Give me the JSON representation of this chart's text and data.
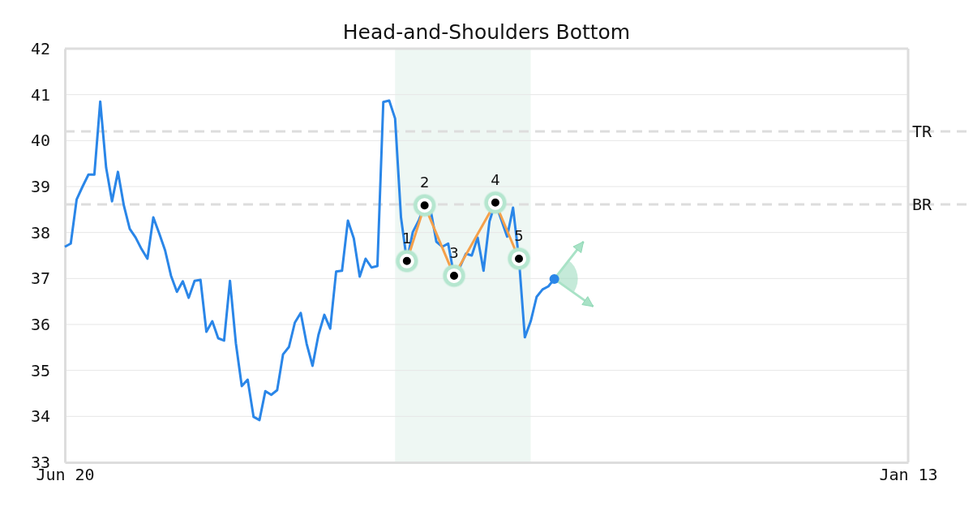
{
  "chart_data": {
    "type": "line",
    "title": "Head-and-Shoulders Bottom",
    "categories": [
      "Jun 20",
      null,
      null,
      null,
      null,
      null,
      null,
      null,
      null,
      null,
      null,
      null,
      null,
      null,
      null,
      null,
      null,
      null,
      null,
      null,
      null,
      null,
      null,
      null,
      null,
      null,
      null,
      null,
      null,
      null,
      null,
      null,
      null,
      null,
      null,
      null,
      null,
      null,
      null,
      null,
      null,
      null,
      null,
      null,
      null,
      null,
      null,
      null,
      null,
      null,
      null,
      null,
      null,
      null,
      null,
      null,
      null,
      null,
      null,
      null,
      null,
      null,
      null,
      null,
      null,
      null,
      null,
      null,
      null,
      null,
      null,
      null,
      null,
      null,
      null,
      null,
      null,
      null,
      null,
      null,
      null,
      null,
      null,
      null,
      null,
      null,
      null,
      null,
      null,
      null,
      null,
      null,
      null,
      null,
      null,
      null,
      null,
      null,
      null,
      null,
      null,
      null,
      null,
      null,
      null,
      null,
      null,
      null,
      null,
      null,
      null,
      null,
      null,
      null,
      null,
      null,
      null,
      null,
      null,
      null,
      null,
      null,
      null,
      null,
      null,
      null,
      null,
      null,
      null,
      null,
      null,
      null,
      null,
      null,
      null,
      null,
      null,
      null,
      null,
      null,
      null,
      null,
      null,
      "Jan 13"
    ],
    "ylim": [
      33,
      42
    ],
    "yticks": [
      33,
      34,
      35,
      36,
      37,
      38,
      39,
      40,
      41,
      42
    ],
    "grid": "y",
    "series": [
      {
        "color": "#2a86e8",
        "marker": "none",
        "values": [
          37.69,
          37.76,
          38.72,
          39.0,
          39.26,
          39.26,
          40.85,
          39.41,
          38.68,
          39.32,
          38.59,
          38.08,
          37.89,
          37.64,
          37.43,
          38.33,
          37.98,
          37.61,
          37.06,
          36.71,
          36.94,
          36.58,
          36.95,
          36.97,
          35.84,
          36.07,
          35.7,
          35.65,
          36.95,
          35.59,
          34.66,
          34.8,
          33.99,
          33.92,
          34.55,
          34.47,
          34.57,
          35.35,
          35.51,
          36.04,
          36.25,
          35.58,
          35.1,
          35.77,
          36.21,
          35.91,
          37.15,
          37.17,
          38.26,
          37.87,
          37.04,
          37.43,
          37.24,
          37.27,
          40.84,
          40.87,
          40.48,
          38.33,
          37.38,
          38.01,
          38.26,
          38.59,
          38.51,
          37.8,
          37.69,
          37.76,
          37.06,
          37.25,
          37.54,
          37.5,
          37.89,
          37.17,
          38.24,
          38.65,
          38.28,
          37.91,
          38.54,
          37.43,
          35.72,
          36.07,
          36.6,
          36.76,
          36.83,
          36.99,
          null,
          null,
          null,
          null,
          null,
          null,
          null,
          null,
          null,
          null,
          null,
          null,
          null,
          null,
          null,
          null,
          null,
          null,
          null,
          null,
          null,
          null,
          null,
          null,
          null,
          null,
          null,
          null,
          null,
          null,
          null,
          null,
          null,
          null,
          null,
          null,
          null,
          null,
          null,
          null,
          null,
          null,
          null,
          null,
          null,
          null,
          null,
          null,
          null,
          null,
          null,
          null,
          null,
          null,
          null,
          null,
          null,
          null,
          null,
          null
        ]
      },
      {
        "color": "#f5a04a",
        "marker": "circle",
        "values": [
          null,
          null,
          null,
          null,
          null,
          null,
          null,
          null,
          null,
          null,
          null,
          null,
          null,
          null,
          null,
          null,
          null,
          null,
          null,
          null,
          null,
          null,
          null,
          null,
          null,
          null,
          null,
          null,
          null,
          null,
          null,
          null,
          null,
          null,
          null,
          null,
          null,
          null,
          null,
          null,
          null,
          null,
          null,
          null,
          null,
          null,
          null,
          null,
          null,
          null,
          null,
          null,
          null,
          null,
          null,
          null,
          null,
          null,
          37.38,
          null,
          null,
          38.59,
          null,
          null,
          null,
          null,
          37.06,
          null,
          null,
          null,
          null,
          null,
          null,
          38.65,
          null,
          null,
          null,
          37.43,
          null,
          null,
          null,
          null,
          null,
          null,
          null,
          null,
          null,
          null,
          null,
          null,
          null,
          null,
          null,
          null,
          null,
          null,
          null,
          null,
          null,
          null,
          null,
          null,
          null,
          null,
          null,
          null,
          null,
          null,
          null,
          null,
          null,
          null,
          null,
          null,
          null,
          null,
          null,
          null,
          null,
          null,
          null,
          null,
          null,
          null,
          null,
          null,
          null,
          null,
          null,
          null,
          null,
          null,
          null,
          null,
          null,
          null,
          null,
          null,
          null,
          null,
          null,
          null,
          null,
          null
        ]
      }
    ],
    "ref_lines": [
      {
        "axis": "y",
        "value": 40.2,
        "label": "TR",
        "color": "#dddddd",
        "line_style": "dashed"
      },
      {
        "axis": "y",
        "value": 38.61,
        "label": "BR",
        "color": "#dddddd",
        "line_style": "dashed"
      }
    ],
    "annotations": [
      "1",
      "2",
      "3",
      "4",
      "5"
    ]
  }
}
